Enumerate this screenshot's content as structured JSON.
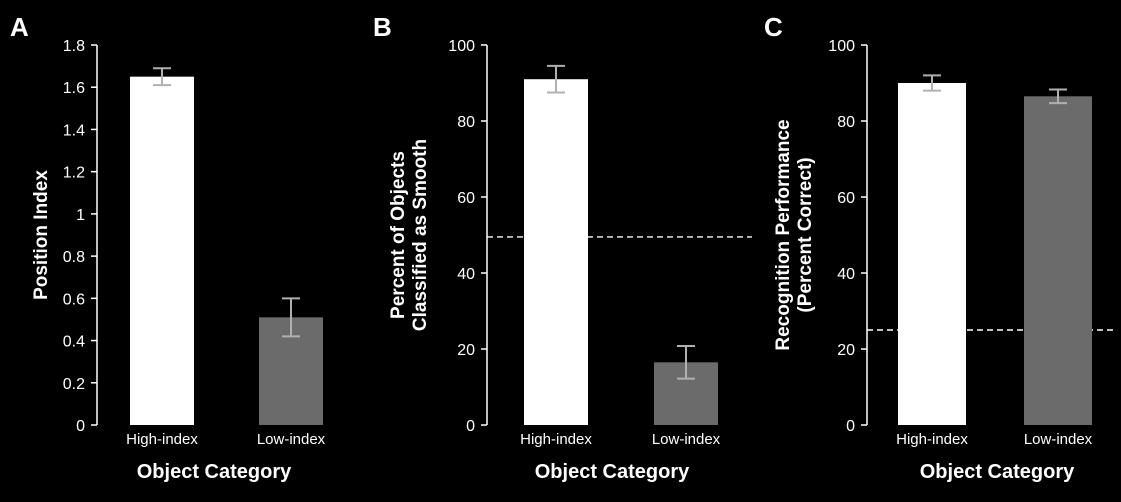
{
  "colors": {
    "background": "#000000",
    "axis": "#ffffff",
    "high_bar": "#ffffff",
    "low_bar": "#6b6b6b",
    "error_bar": "#b0b0b0",
    "reference_line": "#ffffff"
  },
  "chart_data": [
    {
      "panel": "A",
      "type": "bar",
      "categories": [
        "High-index",
        "Low-index"
      ],
      "values": [
        1.65,
        0.51
      ],
      "errors": [
        0.04,
        0.09
      ],
      "xlabel": "Object Category",
      "ylabel": [
        "Position Index"
      ],
      "ylim": [
        0,
        1.8
      ],
      "yticks": [
        0,
        0.2,
        0.4,
        0.6,
        0.8,
        1,
        1.2,
        1.4,
        1.6,
        1.8
      ],
      "ytick_labels": [
        "0",
        "0.2",
        "0.4",
        "0.6",
        "0.8",
        "1",
        "1.2",
        "1.4",
        "1.6",
        "1.8"
      ],
      "reference_line": null,
      "grid": false
    },
    {
      "panel": "B",
      "type": "bar",
      "categories": [
        "High-index",
        "Low-index"
      ],
      "values": [
        91,
        16.5
      ],
      "errors": [
        3.5,
        4.3
      ],
      "xlabel": "Object Category",
      "ylabel": [
        "Percent of Objects",
        "Classified as Smooth"
      ],
      "ylim": [
        0,
        100
      ],
      "yticks": [
        0,
        20,
        40,
        60,
        80,
        100
      ],
      "ytick_labels": [
        "0",
        "20",
        "40",
        "60",
        "80",
        "100"
      ],
      "reference_line": 49.5,
      "grid": false
    },
    {
      "panel": "C",
      "type": "bar",
      "categories": [
        "High-index",
        "Low-index"
      ],
      "values": [
        90,
        86.5
      ],
      "errors": [
        2,
        1.8
      ],
      "xlabel": "Object Category",
      "ylabel": [
        "Recognition Performance",
        "(Percent Correct)"
      ],
      "ylim": [
        0,
        100
      ],
      "yticks": [
        0,
        20,
        40,
        60,
        80,
        100
      ],
      "ytick_labels": [
        "0",
        "20",
        "40",
        "60",
        "80",
        "100"
      ],
      "reference_line": 25,
      "grid": false
    }
  ]
}
